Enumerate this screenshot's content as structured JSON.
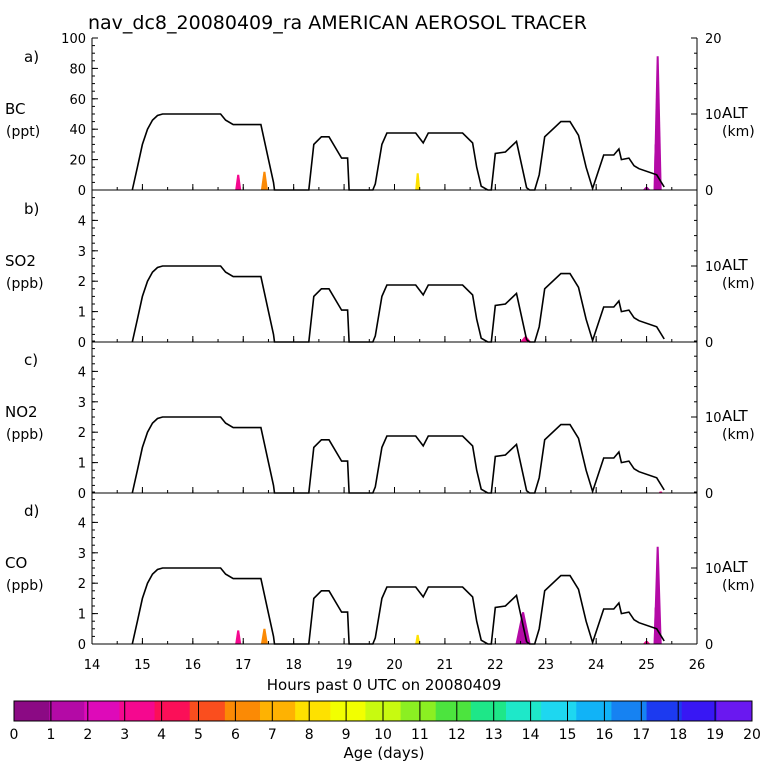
{
  "title": "nav_dc8_20080409_ra AMERICAN AEROSOL TRACER",
  "xlabel": "Hours past 0 UTC on 20080409",
  "colorbar_label": "Age (days)",
  "colorbar_ticks": [
    "0",
    "1",
    "2",
    "3",
    "4",
    "5",
    "6",
    "7",
    "8",
    "9",
    "10",
    "11",
    "12",
    "13",
    "14",
    "15",
    "16",
    "17",
    "18",
    "19",
    "20"
  ],
  "colorbar_colors": [
    "#8b0a84",
    "#b40aa6",
    "#de0ab9",
    "#f5088f",
    "#fb0f58",
    "#fa4e1e",
    "#fb8a05",
    "#feb202",
    "#fee100",
    "#f2ff00",
    "#c8fa10",
    "#8bef22",
    "#4ce43e",
    "#1ee788",
    "#1ee8c9",
    "#1ed7f0",
    "#11b3f7",
    "#1682f2",
    "#1c3af0",
    "#3817f4",
    "#6a18f0"
  ],
  "x_ticks": [
    "14",
    "15",
    "16",
    "17",
    "18",
    "19",
    "20",
    "21",
    "22",
    "23",
    "24",
    "25",
    "26"
  ],
  "chart_data": {
    "type": "area",
    "xlim": [
      14,
      26
    ],
    "alt_range_km": [
      0,
      20
    ],
    "alt_ticks": [
      "0",
      "10",
      "20"
    ],
    "alt_label": "ALT",
    "alt_units": "(km)",
    "altitude_km": {
      "x": [
        14.8,
        14.9,
        15.0,
        15.1,
        15.2,
        15.3,
        15.4,
        15.5,
        15.6,
        16.0,
        16.55,
        16.65,
        16.8,
        17.35,
        17.5,
        17.6,
        17.62,
        18.3,
        18.4,
        18.55,
        18.7,
        18.95,
        19.07,
        19.1,
        19.57,
        19.62,
        19.75,
        19.85,
        20.3,
        20.42,
        20.57,
        20.67,
        21.35,
        21.55,
        21.63,
        21.72,
        21.85,
        21.92,
        22.0,
        22.2,
        22.42,
        22.62,
        22.68,
        22.78,
        22.87,
        22.98,
        23.3,
        23.48,
        23.65,
        23.8,
        23.93,
        24.15,
        24.35,
        24.45,
        24.5,
        24.65,
        24.75,
        24.85,
        25.2,
        25.35
      ],
      "y": [
        0.0,
        3.0,
        6.0,
        8.0,
        9.2,
        9.8,
        10.0,
        10.0,
        10.0,
        10.0,
        10.0,
        9.2,
        8.6,
        8.6,
        4.0,
        1.0,
        0.0,
        0.0,
        6.0,
        7.0,
        7.0,
        4.2,
        4.2,
        0.0,
        0.0,
        0.8,
        6.0,
        7.5,
        7.5,
        7.5,
        6.2,
        7.5,
        7.5,
        6.2,
        3.0,
        0.5,
        0.0,
        0.0,
        4.8,
        5.0,
        6.4,
        0.3,
        0.0,
        0.0,
        2.0,
        7.0,
        9.0,
        9.0,
        7.2,
        3.0,
        0.2,
        4.6,
        4.6,
        5.4,
        4.0,
        4.2,
        3.2,
        2.8,
        2.0,
        0.4
      ]
    },
    "panels": [
      {
        "label": "a)",
        "species": "BC",
        "units": "(ppt)",
        "ylim": [
          0,
          100
        ],
        "yticks": [
          "0",
          "20",
          "40",
          "60",
          "80",
          "100"
        ],
        "events": [
          {
            "x": 16.9,
            "w": 0.12,
            "v": 10
          },
          {
            "x": 17.42,
            "w": 0.14,
            "v": 12
          },
          {
            "x": 20.46,
            "w": 0.1,
            "v": 11
          },
          {
            "x": 25.0,
            "w": 0.15,
            "v": 2
          },
          {
            "x": 25.22,
            "w": 0.16,
            "v": 88
          },
          {
            "x": 25.18,
            "w": 0.08,
            "v": 30
          }
        ]
      },
      {
        "label": "b)",
        "species": "SO2",
        "units": "(ppb)",
        "ylim": [
          0,
          5
        ],
        "yticks": [
          "0",
          "1",
          "2",
          "3",
          "4"
        ],
        "events": [
          {
            "x": 22.6,
            "w": 0.22,
            "v": 0.18
          }
        ]
      },
      {
        "label": "c)",
        "species": "NO2",
        "units": "(ppb)",
        "ylim": [
          0,
          5
        ],
        "yticks": [
          "0",
          "1",
          "2",
          "3",
          "4"
        ],
        "events": [
          {
            "x": 25.28,
            "w": 0.08,
            "v": 0.05
          }
        ]
      },
      {
        "label": "d)",
        "species": "CO",
        "units": "(ppb)",
        "ylim": [
          0,
          5
        ],
        "yticks": [
          "0",
          "1",
          "2",
          "3",
          "4"
        ],
        "events": [
          {
            "x": 16.9,
            "w": 0.12,
            "v": 0.45
          },
          {
            "x": 17.42,
            "w": 0.14,
            "v": 0.5
          },
          {
            "x": 20.46,
            "w": 0.1,
            "v": 0.3
          },
          {
            "x": 22.55,
            "w": 0.3,
            "v": 1.05
          },
          {
            "x": 25.0,
            "w": 0.15,
            "v": 0.1
          },
          {
            "x": 25.22,
            "w": 0.16,
            "v": 3.2
          },
          {
            "x": 25.18,
            "w": 0.08,
            "v": 1.2
          }
        ]
      }
    ]
  }
}
